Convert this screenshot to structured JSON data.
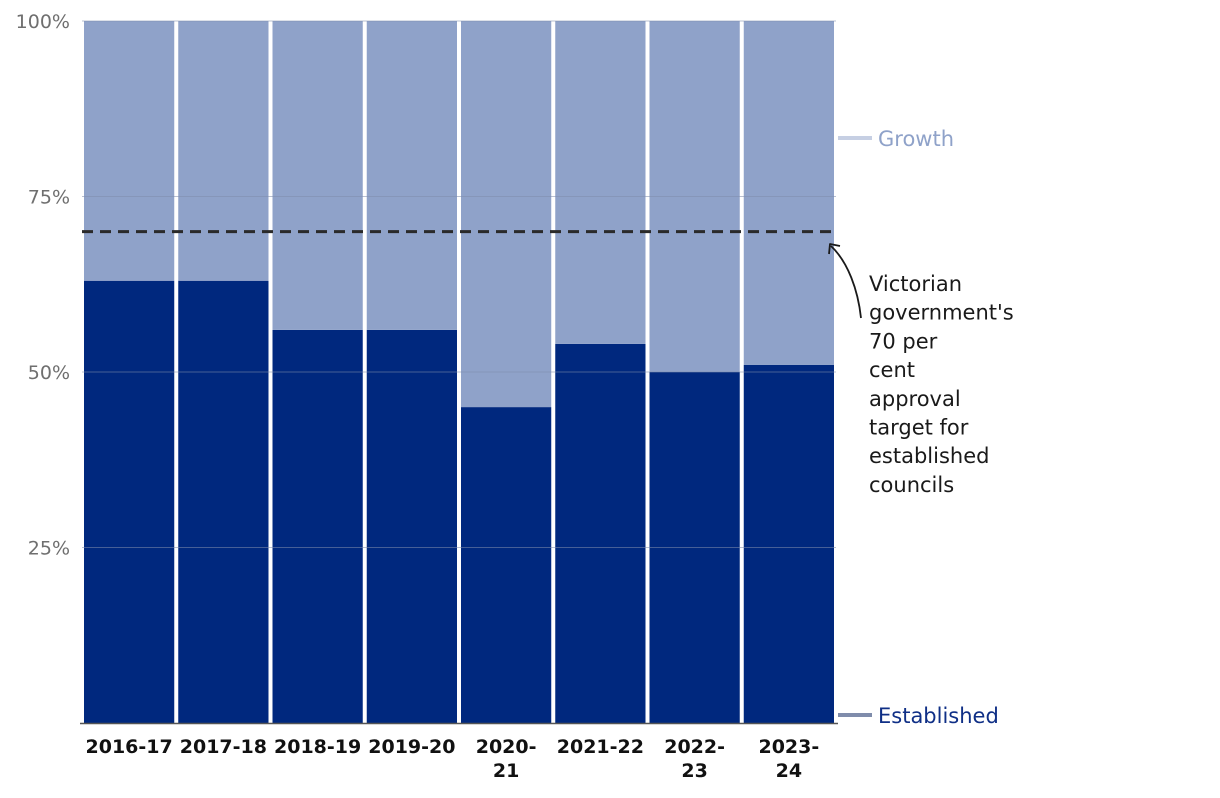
{
  "chart_data": {
    "type": "bar",
    "stacked": true,
    "categories": [
      "2016-17",
      "2017-18",
      "2018-19",
      "2019-20",
      "2020-21",
      "2021-22",
      "2022-23",
      "2023-24"
    ],
    "category_lines": [
      [
        "2016-17"
      ],
      [
        "2017-18"
      ],
      [
        "2018-19"
      ],
      [
        "2019-20"
      ],
      [
        "2020-",
        "21"
      ],
      [
        "2021-22"
      ],
      [
        "2022-",
        "23"
      ],
      [
        "2023-",
        "24"
      ]
    ],
    "series": [
      {
        "name": "Established",
        "color": "#00287e",
        "values": [
          63,
          63,
          56,
          56,
          45,
          54,
          50,
          51
        ]
      },
      {
        "name": "Growth",
        "color": "#8fa2c9",
        "values": [
          37,
          37,
          44,
          44,
          55,
          46,
          50,
          49
        ]
      }
    ],
    "ylim": [
      0,
      100
    ],
    "yticks": [
      25,
      50,
      75,
      100
    ],
    "ytick_labels": [
      "25%",
      "50%",
      "75%",
      "100%"
    ],
    "grid": true,
    "legend_placement": "right, beside bars",
    "target_line": {
      "value": 70,
      "style": "dashed",
      "color": "#2a2a2a"
    },
    "annotation": {
      "lines": [
        "Victorian",
        "government's",
        "70 per",
        "cent",
        "approval",
        "target for",
        "established",
        "councils"
      ]
    }
  },
  "colors": {
    "established": "#00287e",
    "growth": "#8fa2c9",
    "growth_legend_label": "#8fa2c9",
    "established_legend_label": "#0f2f86",
    "grid": "#7f8cab"
  }
}
